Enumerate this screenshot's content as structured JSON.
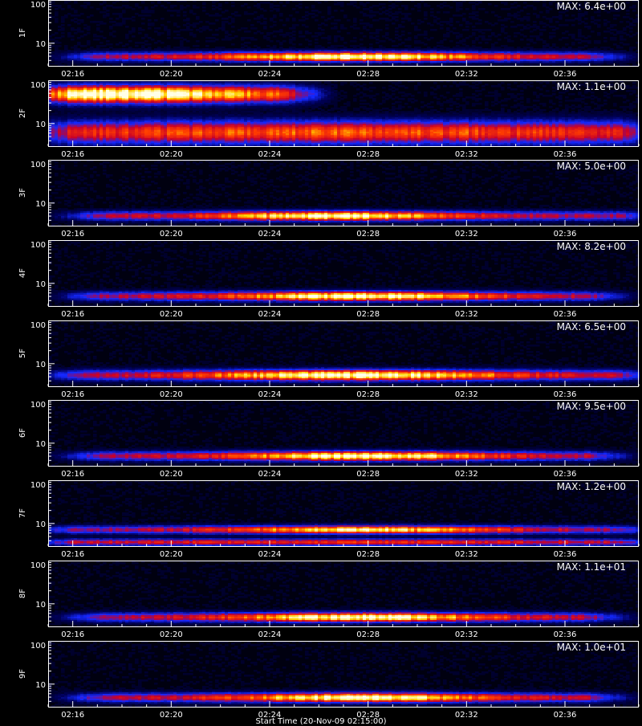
{
  "chart_data": [
    {
      "type": "heatmap",
      "ylabel": "1F",
      "yticks": [
        "100",
        "10"
      ],
      "max_label": "MAX: 6.4e+00",
      "xticks": [
        "02:16",
        "02:20",
        "02:24",
        "02:28",
        "02:32",
        "02:36"
      ],
      "bands": [
        {
          "y": 0.85,
          "spread": 0.07,
          "start": 0.05,
          "end": 0.95,
          "peak": 0.52,
          "width": 0.22,
          "intensity": 0.95
        }
      ]
    },
    {
      "type": "heatmap",
      "ylabel": "2F",
      "yticks": [
        "100",
        "10"
      ],
      "max_label": "MAX: 1.1e+00",
      "xticks": [
        "02:16",
        "02:20",
        "02:24",
        "02:28",
        "02:32",
        "02:36"
      ],
      "bands": [
        {
          "y": 0.2,
          "spread": 0.13,
          "start": 0.0,
          "end": 0.43,
          "peak": 0.08,
          "width": 0.3,
          "intensity": 1.0
        },
        {
          "y": 0.78,
          "spread": 0.17,
          "start": 0.0,
          "end": 1.0,
          "peak": 0.5,
          "width": 0.9,
          "intensity": 0.62
        }
      ]
    },
    {
      "type": "heatmap",
      "ylabel": "3F",
      "yticks": [
        "100",
        "10"
      ],
      "max_label": "MAX: 5.0e+00",
      "xticks": [
        "02:16",
        "02:20",
        "02:24",
        "02:28",
        "02:32",
        "02:36"
      ],
      "bands": [
        {
          "y": 0.84,
          "spread": 0.07,
          "start": 0.05,
          "end": 1.0,
          "peak": 0.48,
          "width": 0.2,
          "intensity": 0.95
        }
      ]
    },
    {
      "type": "heatmap",
      "ylabel": "4F",
      "yticks": [
        "100",
        "10"
      ],
      "max_label": "MAX: 8.2e+00",
      "xticks": [
        "02:16",
        "02:20",
        "02:24",
        "02:28",
        "02:32",
        "02:36"
      ],
      "bands": [
        {
          "y": 0.84,
          "spread": 0.07,
          "start": 0.05,
          "end": 0.95,
          "peak": 0.53,
          "width": 0.22,
          "intensity": 0.95
        }
      ]
    },
    {
      "type": "heatmap",
      "ylabel": "5F",
      "yticks": [
        "100",
        "10"
      ],
      "max_label": "MAX: 6.5e+00",
      "xticks": [
        "02:16",
        "02:20",
        "02:24",
        "02:28",
        "02:32",
        "02:36"
      ],
      "bands": [
        {
          "y": 0.82,
          "spread": 0.08,
          "start": 0.02,
          "end": 1.0,
          "peak": 0.52,
          "width": 0.26,
          "intensity": 0.95
        }
      ]
    },
    {
      "type": "heatmap",
      "ylabel": "6F",
      "yticks": [
        "100",
        "10"
      ],
      "max_label": "MAX: 9.5e+00",
      "xticks": [
        "02:16",
        "02:20",
        "02:24",
        "02:28",
        "02:32",
        "02:36"
      ],
      "bands": [
        {
          "y": 0.84,
          "spread": 0.07,
          "start": 0.05,
          "end": 0.95,
          "peak": 0.53,
          "width": 0.22,
          "intensity": 0.95
        }
      ]
    },
    {
      "type": "heatmap",
      "ylabel": "7F",
      "yticks": [
        "100",
        "10"
      ],
      "max_label": "MAX: 1.2e+00",
      "xticks": [
        "02:16",
        "02:20",
        "02:24",
        "02:28",
        "02:32",
        "02:36"
      ],
      "bands": [
        {
          "y": 0.74,
          "spread": 0.06,
          "start": 0.0,
          "end": 1.0,
          "peak": 0.53,
          "width": 0.26,
          "intensity": 0.85
        },
        {
          "y": 0.93,
          "spread": 0.05,
          "start": 0.0,
          "end": 1.0,
          "peak": 0.5,
          "width": 0.7,
          "intensity": 0.55
        }
      ]
    },
    {
      "type": "heatmap",
      "ylabel": "8F",
      "yticks": [
        "100",
        "10"
      ],
      "max_label": "MAX: 1.1e+01",
      "xticks": [
        "02:16",
        "02:20",
        "02:24",
        "02:28",
        "02:32",
        "02:36"
      ],
      "bands": [
        {
          "y": 0.85,
          "spread": 0.07,
          "start": 0.05,
          "end": 0.95,
          "peak": 0.53,
          "width": 0.22,
          "intensity": 0.95
        }
      ]
    },
    {
      "type": "heatmap",
      "ylabel": "9F",
      "yticks": [
        "100",
        "10"
      ],
      "max_label": "MAX: 1.0e+01",
      "xticks": [
        "02:16",
        "02:20",
        "02:24",
        "02:28",
        "02:32",
        "02:36"
      ],
      "bands": [
        {
          "y": 0.85,
          "spread": 0.07,
          "start": 0.05,
          "end": 0.95,
          "peak": 0.53,
          "width": 0.22,
          "intensity": 0.95
        }
      ]
    }
  ],
  "xlabel": "Start Time (20-Nov-09 02:15:00)",
  "colors": {
    "background": "#000000",
    "axis": "#ffffff",
    "low": "#00008b",
    "mid": "#ff0000",
    "high": "#ffffff"
  }
}
